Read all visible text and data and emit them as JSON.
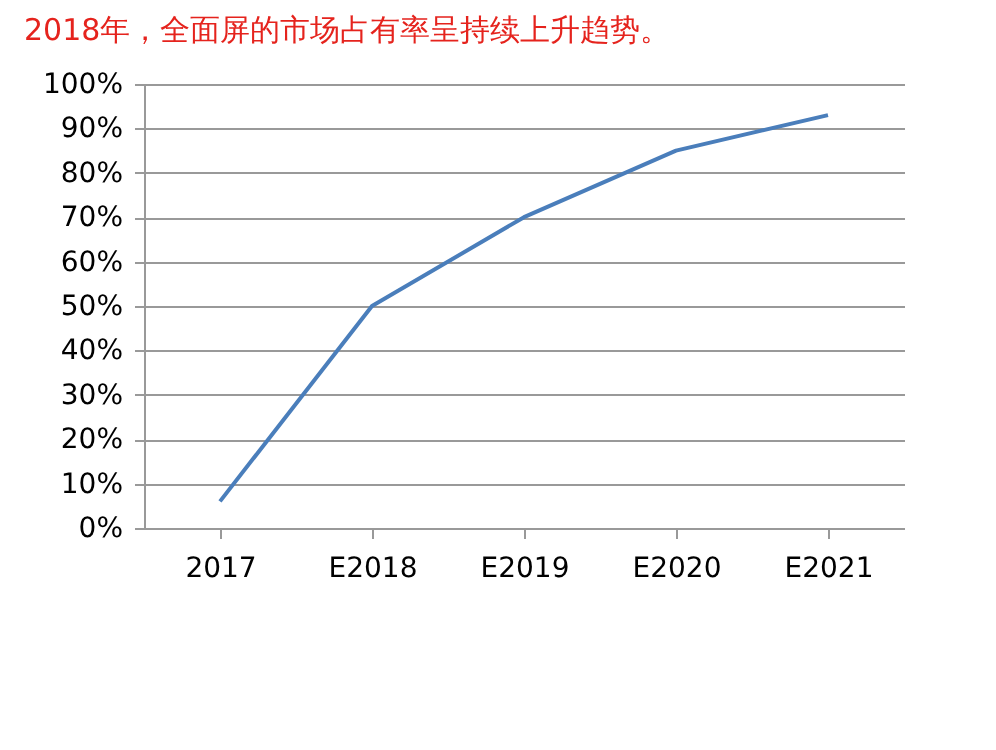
{
  "chart_data": {
    "type": "line",
    "title": "2018年，全面屏的市场占有率呈持续上升趋势。",
    "categories": [
      "2017",
      "E2018",
      "E2019",
      "E2020",
      "E2021"
    ],
    "series": [
      {
        "color": "#4a7ebb",
        "values": [
          6,
          50,
          70,
          85,
          93
        ]
      }
    ],
    "ylim": [
      0,
      100
    ],
    "yticks": [
      {
        "value": 0,
        "label": "0%"
      },
      {
        "value": 10,
        "label": "10%"
      },
      {
        "value": 20,
        "label": "20%"
      },
      {
        "value": 30,
        "label": "30%"
      },
      {
        "value": 40,
        "label": "40%"
      },
      {
        "value": 50,
        "label": "50%"
      },
      {
        "value": 60,
        "label": "60%"
      },
      {
        "value": 70,
        "label": "70%"
      },
      {
        "value": 80,
        "label": "80%"
      },
      {
        "value": 90,
        "label": "90%"
      },
      {
        "value": 100,
        "label": "100%"
      }
    ],
    "grid": "y",
    "legend": false,
    "marker": "none",
    "line_style": "solid"
  }
}
